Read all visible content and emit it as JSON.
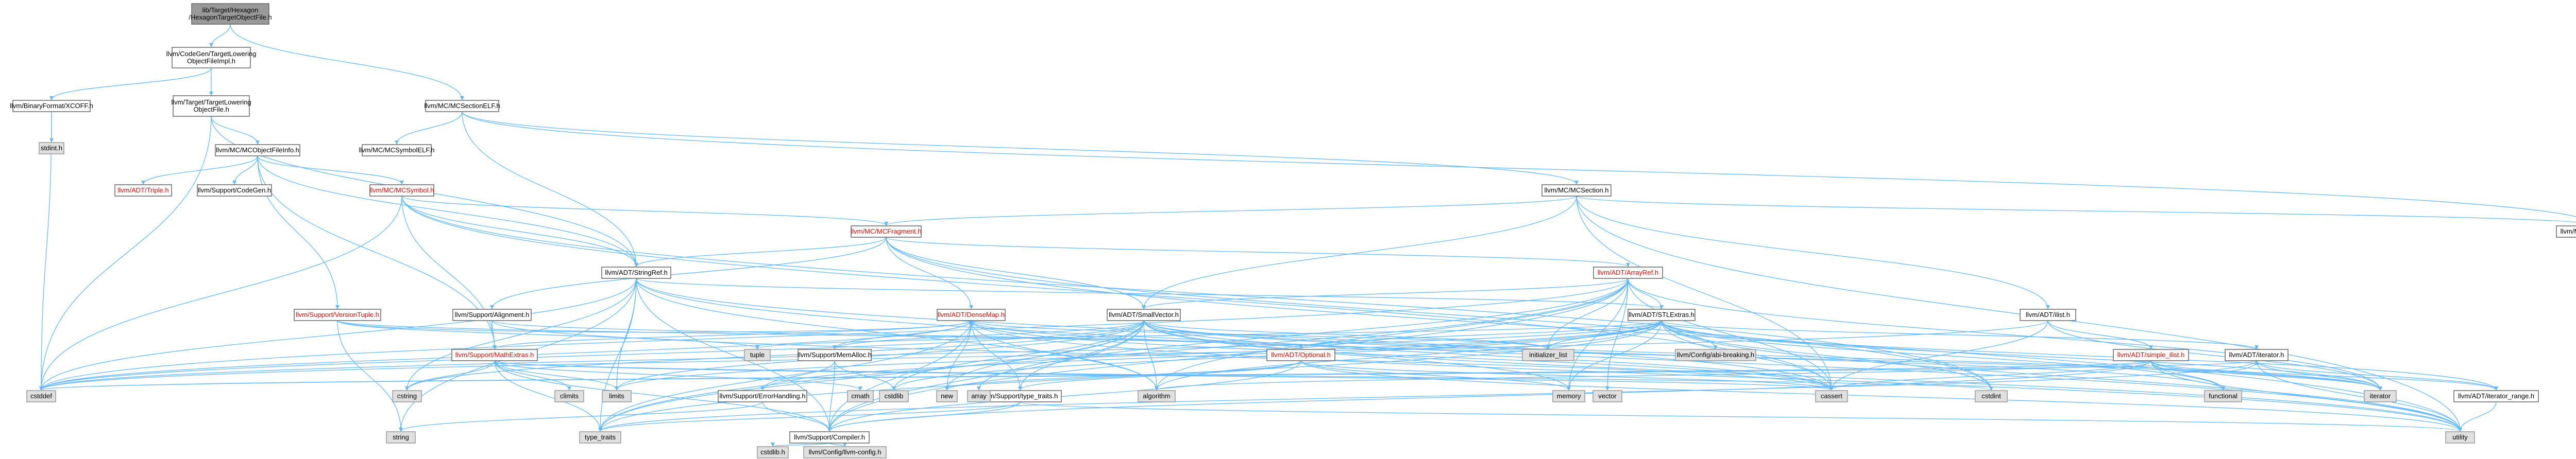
{
  "nodes": [
    {
      "id": "root",
      "lines": [
        "lib/Target/Hexagon",
        "/HexagonTargetObjectFile.h"
      ],
      "style": "root"
    },
    {
      "id": "tloi",
      "lines": [
        "llvm/CodeGen/TargetLowering",
        "ObjectFileImpl.h"
      ],
      "style": "normal"
    },
    {
      "id": "mcselfh",
      "lines": [
        "llvm/MC/MCSectionELF.h"
      ],
      "style": "normal"
    },
    {
      "id": "xcoff",
      "lines": [
        "llvm/BinaryFormat/XCOFF.h"
      ],
      "style": "normal"
    },
    {
      "id": "tlof",
      "lines": [
        "llvm/Target/TargetLowering",
        "ObjectFile.h"
      ],
      "style": "normal"
    },
    {
      "id": "stdinth",
      "lines": [
        "stdint.h"
      ],
      "style": "sys"
    },
    {
      "id": "mcofi",
      "lines": [
        "llvm/MC/MCObjectFileInfo.h"
      ],
      "style": "normal"
    },
    {
      "id": "mcsymelf",
      "lines": [
        "llvm/MC/MCSymbolELF.h"
      ],
      "style": "normal"
    },
    {
      "id": "mcsection",
      "lines": [
        "llvm/MC/MCSection.h"
      ],
      "style": "normal"
    },
    {
      "id": "triple",
      "lines": [
        "llvm/ADT/Triple.h"
      ],
      "style": "red"
    },
    {
      "id": "codegen",
      "lines": [
        "llvm/Support/CodeGen.h"
      ],
      "style": "normal"
    },
    {
      "id": "mcsymbol",
      "lines": [
        "llvm/MC/MCSymbol.h"
      ],
      "style": "red"
    },
    {
      "id": "mcsectionkind",
      "lines": [
        "llvm/MC/SectionKind.h"
      ],
      "style": "normal"
    },
    {
      "id": "mcfragment",
      "lines": [
        "llvm/MC/MCFragment.h"
      ],
      "style": "red"
    },
    {
      "id": "stringref",
      "lines": [
        "llvm/ADT/StringRef.h"
      ],
      "style": "normal"
    },
    {
      "id": "arrayref",
      "lines": [
        "llvm/ADT/ArrayRef.h"
      ],
      "style": "red"
    },
    {
      "id": "versiontuple",
      "lines": [
        "llvm/Support/VersionTuple.h"
      ],
      "style": "red"
    },
    {
      "id": "alignment",
      "lines": [
        "llvm/Support/Alignment.h"
      ],
      "style": "normal"
    },
    {
      "id": "densemap",
      "lines": [
        "llvm/ADT/DenseMap.h"
      ],
      "style": "red"
    },
    {
      "id": "smallvector",
      "lines": [
        "llvm/ADT/SmallVector.h"
      ],
      "style": "normal"
    },
    {
      "id": "stlextras",
      "lines": [
        "llvm/ADT/STLExtras.h"
      ],
      "style": "normal"
    },
    {
      "id": "ilist",
      "lines": [
        "llvm/ADT/ilist.h"
      ],
      "style": "normal"
    },
    {
      "id": "mathextras",
      "lines": [
        "llvm/Support/MathExtras.h"
      ],
      "style": "red"
    },
    {
      "id": "tuple",
      "lines": [
        "tuple"
      ],
      "style": "sys"
    },
    {
      "id": "memalloc",
      "lines": [
        "llvm/Support/MemAlloc.h"
      ],
      "style": "normal"
    },
    {
      "id": "optional",
      "lines": [
        "llvm/ADT/Optional.h"
      ],
      "style": "red"
    },
    {
      "id": "initlist",
      "lines": [
        "initializer_list"
      ],
      "style": "sys"
    },
    {
      "id": "configabi",
      "lines": [
        "llvm/Config/abi-breaking.h"
      ],
      "style": "sys"
    },
    {
      "id": "simpleilist",
      "lines": [
        "llvm/ADT/simple_ilist.h"
      ],
      "style": "red"
    },
    {
      "id": "iteratorh",
      "lines": [
        "llvm/ADT/iterator.h"
      ],
      "style": "normal"
    },
    {
      "id": "cstddef",
      "lines": [
        "cstddef"
      ],
      "style": "sys"
    },
    {
      "id": "cstring",
      "lines": [
        "cstring"
      ],
      "style": "sys"
    },
    {
      "id": "string",
      "lines": [
        "string"
      ],
      "style": "sys"
    },
    {
      "id": "climits",
      "lines": [
        "climits"
      ],
      "style": "sys"
    },
    {
      "id": "errorhandling",
      "lines": [
        "llvm/Support/ErrorHandling.h"
      ],
      "style": "normal"
    },
    {
      "id": "typetraitsllvm",
      "lines": [
        "llvm/Support/type_traits.h"
      ],
      "style": "normal"
    },
    {
      "id": "cstdlib",
      "lines": [
        "cstdlib"
      ],
      "style": "sys"
    },
    {
      "id": "new",
      "lines": [
        "new"
      ],
      "style": "sys"
    },
    {
      "id": "algorithm",
      "lines": [
        "algorithm"
      ],
      "style": "sys"
    },
    {
      "id": "memory",
      "lines": [
        "memory"
      ],
      "style": "sys"
    },
    {
      "id": "cassert",
      "lines": [
        "cassert"
      ],
      "style": "sys"
    },
    {
      "id": "cstdint",
      "lines": [
        "cstdint"
      ],
      "style": "sys"
    },
    {
      "id": "functional",
      "lines": [
        "functional"
      ],
      "style": "sys"
    },
    {
      "id": "iterator",
      "lines": [
        "iterator"
      ],
      "style": "sys"
    },
    {
      "id": "iteratorrange",
      "lines": [
        "llvm/ADT/iterator_range.h"
      ],
      "style": "normal"
    },
    {
      "id": "utility",
      "lines": [
        "utility"
      ],
      "style": "sys"
    },
    {
      "id": "typetraits",
      "lines": [
        "type_traits"
      ],
      "style": "sys"
    },
    {
      "id": "compiler",
      "lines": [
        "llvm/Support/Compiler.h"
      ],
      "style": "normal"
    },
    {
      "id": "cstdlibh",
      "lines": [
        "cstdlib.h"
      ],
      "style": "sys"
    },
    {
      "id": "llvmconfig",
      "lines": [
        "llvm/Config/llvm-config.h"
      ],
      "style": "sys"
    }
  ],
  "edges": [
    [
      "root",
      "tloi"
    ],
    [
      "root",
      "mcselfh"
    ],
    [
      "tloi",
      "xcoff"
    ],
    [
      "tloi",
      "tlof"
    ],
    [
      "xcoff",
      "stdinth"
    ],
    [
      "xcoff",
      "cstddef"
    ],
    [
      "tlof",
      "mcofi"
    ],
    [
      "tlof",
      "stringref"
    ],
    [
      "tlof",
      "cstddef"
    ],
    [
      "mcofi",
      "triple"
    ],
    [
      "mcofi",
      "codegen"
    ],
    [
      "mcofi",
      "mcsymbol"
    ],
    [
      "mcofi",
      "versiontuple"
    ],
    [
      "mcofi",
      "mathextras"
    ],
    [
      "mcofi",
      "stringref"
    ],
    [
      "mcselfh",
      "mcsymelf"
    ],
    [
      "mcselfh",
      "mcsection"
    ],
    [
      "mcselfh",
      "mcsectionkind"
    ],
    [
      "mcselfh",
      "stringref"
    ],
    [
      "mcsection",
      "mcfragment"
    ],
    [
      "mcsection",
      "smallvector"
    ],
    [
      "mcsection",
      "ilist"
    ],
    [
      "mcsection",
      "mcsectionkind"
    ],
    [
      "mcsection",
      "cassert"
    ],
    [
      "mcsection",
      "utility"
    ],
    [
      "mcsymbol",
      "mcfragment"
    ],
    [
      "mcsymbol",
      "stringref"
    ],
    [
      "mcsymbol",
      "mathextras"
    ],
    [
      "mcsymbol",
      "cassert"
    ],
    [
      "mcsymbol",
      "cstddef"
    ],
    [
      "mcsymbol",
      "cstdint"
    ],
    [
      "mcfragment",
      "arrayref"
    ],
    [
      "mcfragment",
      "stringref"
    ],
    [
      "mcfragment",
      "smallvector"
    ],
    [
      "mcfragment",
      "alignment"
    ],
    [
      "mcfragment",
      "densemap"
    ],
    [
      "mcfragment",
      "cstdint"
    ],
    [
      "mcfragment",
      "utility"
    ],
    [
      "stringref",
      "stlextras"
    ],
    [
      "stringref",
      "compiler"
    ],
    [
      "stringref",
      "algorithm"
    ],
    [
      "stringref",
      "cassert"
    ],
    [
      "stringref",
      "cstddef"
    ],
    [
      "stringref",
      "cstring"
    ],
    [
      "stringref",
      "limits"
    ],
    [
      "stringref",
      "string"
    ],
    [
      "stringref",
      "typetraits"
    ],
    [
      "stringref",
      "utility"
    ],
    [
      "arrayref",
      "smallvector"
    ],
    [
      "arrayref",
      "stlextras"
    ],
    [
      "arrayref",
      "compiler"
    ],
    [
      "arrayref",
      "algorithm"
    ],
    [
      "arrayref",
      "array"
    ],
    [
      "arrayref",
      "cassert"
    ],
    [
      "arrayref",
      "cstddef"
    ],
    [
      "arrayref",
      "initlist"
    ],
    [
      "arrayref",
      "iterator"
    ],
    [
      "arrayref",
      "memory"
    ],
    [
      "arrayref",
      "typetraits"
    ],
    [
      "arrayref",
      "vector"
    ],
    [
      "versiontuple",
      "densemap"
    ],
    [
      "versiontuple",
      "optional"
    ],
    [
      "versiontuple",
      "string"
    ],
    [
      "versiontuple",
      "tuple"
    ],
    [
      "alignment",
      "mathextras"
    ],
    [
      "alignment",
      "cassert"
    ],
    [
      "alignment",
      "optional"
    ],
    [
      "densemap",
      "mathextras"
    ],
    [
      "densemap",
      "memalloc"
    ],
    [
      "densemap",
      "compiler"
    ],
    [
      "densemap",
      "algorithm"
    ],
    [
      "densemap",
      "cassert"
    ],
    [
      "densemap",
      "cstddef"
    ],
    [
      "densemap",
      "initlist"
    ],
    [
      "densemap",
      "iterator"
    ],
    [
      "densemap",
      "new"
    ],
    [
      "densemap",
      "typetraits"
    ],
    [
      "densemap",
      "utility"
    ],
    [
      "densemap",
      "typetraitsllvm"
    ],
    [
      "smallvector",
      "compiler"
    ],
    [
      "smallvector",
      "typetraitsllvm"
    ],
    [
      "smallvector",
      "algorithm"
    ],
    [
      "smallvector",
      "cassert"
    ],
    [
      "smallvector",
      "cstddef"
    ],
    [
      "smallvector",
      "cstdlib"
    ],
    [
      "smallvector",
      "cstring"
    ],
    [
      "smallvector",
      "functional"
    ],
    [
      "smallvector",
      "initlist"
    ],
    [
      "smallvector",
      "iterator"
    ],
    [
      "smallvector",
      "limits"
    ],
    [
      "smallvector",
      "memory"
    ],
    [
      "smallvector",
      "new"
    ],
    [
      "smallvector",
      "typetraits"
    ],
    [
      "smallvector",
      "utility"
    ],
    [
      "smallvector",
      "memalloc"
    ],
    [
      "stlextras",
      "optional"
    ],
    [
      "stlextras",
      "iteratorh"
    ],
    [
      "stlextras",
      "iteratorrange"
    ],
    [
      "stlextras",
      "configabi"
    ],
    [
      "stlextras",
      "errorhandling"
    ],
    [
      "stlextras",
      "algorithm"
    ],
    [
      "stlextras",
      "cassert"
    ],
    [
      "stlextras",
      "cstddef"
    ],
    [
      "stlextras",
      "cstdint"
    ],
    [
      "stlextras",
      "cstdlib"
    ],
    [
      "stlextras",
      "functional"
    ],
    [
      "stlextras",
      "initlist"
    ],
    [
      "stlextras",
      "iterator"
    ],
    [
      "stlextras",
      "limits"
    ],
    [
      "stlextras",
      "memory"
    ],
    [
      "stlextras",
      "tuple"
    ],
    [
      "stlextras",
      "typetraits"
    ],
    [
      "stlextras",
      "utility"
    ],
    [
      "ilist",
      "simpleilist"
    ],
    [
      "ilist",
      "cassert"
    ],
    [
      "ilist",
      "cstddef"
    ],
    [
      "ilist",
      "iterator"
    ],
    [
      "simpleilist",
      "iteratorh"
    ],
    [
      "simpleilist",
      "iteratorrange"
    ],
    [
      "simpleilist",
      "compiler"
    ],
    [
      "simpleilist",
      "algorithm"
    ],
    [
      "simpleilist",
      "cassert"
    ],
    [
      "simpleilist",
      "cstddef"
    ],
    [
      "simpleilist",
      "functional"
    ],
    [
      "simpleilist",
      "iterator"
    ],
    [
      "simpleilist",
      "utility"
    ],
    [
      "iteratorh",
      "iteratorrange"
    ],
    [
      "iteratorh",
      "cstddef"
    ],
    [
      "iteratorh",
      "iterator"
    ],
    [
      "iteratorh",
      "typetraits"
    ],
    [
      "iteratorh",
      "utility"
    ],
    [
      "iteratorrange",
      "utility"
    ],
    [
      "mathextras",
      "compiler"
    ],
    [
      "mathextras",
      "cassert"
    ],
    [
      "mathextras",
      "climits"
    ],
    [
      "mathextras",
      "cmath"
    ],
    [
      "mathextras",
      "cstdint"
    ],
    [
      "mathextras",
      "cstring"
    ],
    [
      "mathextras",
      "limits"
    ],
    [
      "mathextras",
      "typetraits"
    ],
    [
      "memalloc",
      "compiler"
    ],
    [
      "memalloc",
      "errorhandling"
    ],
    [
      "memalloc",
      "cstdlib"
    ],
    [
      "optional",
      "compiler"
    ],
    [
      "optional",
      "typetraitsllvm"
    ],
    [
      "optional",
      "cassert"
    ],
    [
      "optional",
      "memory"
    ],
    [
      "optional",
      "new"
    ],
    [
      "optional",
      "utility"
    ],
    [
      "errorhandling",
      "compiler"
    ],
    [
      "errorhandling",
      "string"
    ],
    [
      "typetraitsllvm",
      "compiler"
    ],
    [
      "typetraitsllvm",
      "typetraits"
    ],
    [
      "typetraitsllvm",
      "utility"
    ],
    [
      "compiler",
      "llvmconfig"
    ],
    [
      "compiler",
      "cstdlibh"
    ]
  ],
  "extra_nodes": [
    {
      "id": "limits",
      "lines": [
        "limits"
      ],
      "style": "sys"
    },
    {
      "id": "array",
      "lines": [
        "array"
      ],
      "style": "sys"
    },
    {
      "id": "vector",
      "lines": [
        "vector"
      ],
      "style": "sys"
    },
    {
      "id": "cmath",
      "lines": [
        "cmath"
      ],
      "style": "sys"
    }
  ]
}
